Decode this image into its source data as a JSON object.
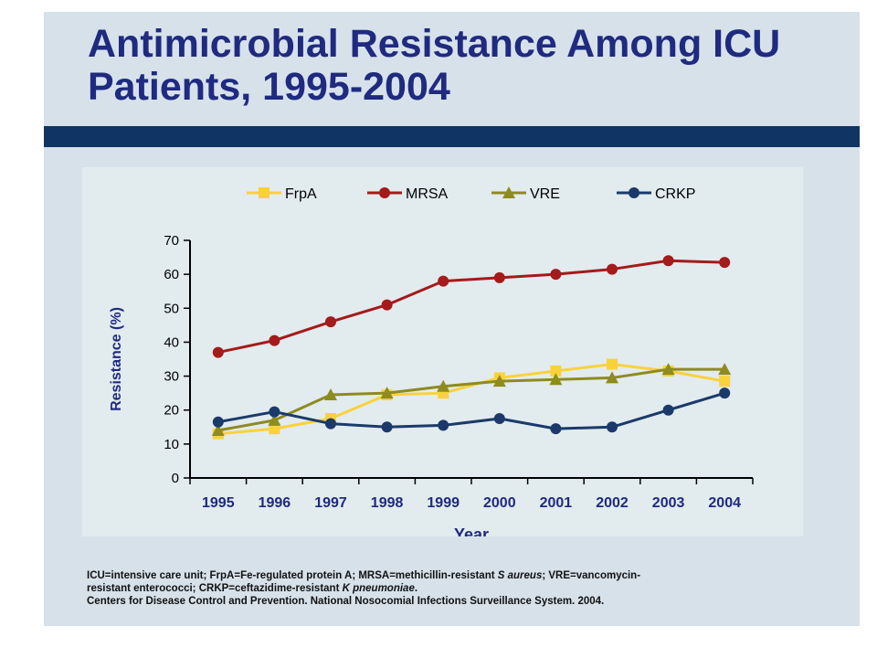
{
  "title": "Antimicrobial Resistance Among ICU Patients, 1995-2004",
  "colors": {
    "slide_bg": "#d6e1ea",
    "title_text": "#1f2a80",
    "title_bar": "#103463",
    "chart_panel": "#e2ebee",
    "axis_text": "#1f2a80"
  },
  "chart_data": {
    "type": "line",
    "x": [
      "1995",
      "1996",
      "1997",
      "1998",
      "1999",
      "2000",
      "2001",
      "2002",
      "2003",
      "2004"
    ],
    "xlabel": "Year",
    "ylabel": "Resistance (%)",
    "ylim": [
      0,
      70
    ],
    "yticks": [
      0,
      10,
      20,
      30,
      40,
      50,
      60,
      70
    ],
    "grid": false,
    "legend_position": "top",
    "series": [
      {
        "name": "FrpA",
        "marker": "square",
        "color": "#f9d23a",
        "values": [
          13,
          14.5,
          17.5,
          24.5,
          25,
          29.5,
          31.5,
          33.5,
          31.5,
          28.5
        ]
      },
      {
        "name": "MRSA",
        "marker": "circle",
        "color": "#a51a1a",
        "values": [
          37,
          40.5,
          46,
          51,
          58,
          59,
          60,
          61.5,
          64,
          63.5
        ]
      },
      {
        "name": "VRE",
        "marker": "triangle",
        "color": "#8e8b20",
        "values": [
          14,
          17,
          24.5,
          25,
          27,
          28.5,
          29,
          29.5,
          32,
          32
        ]
      },
      {
        "name": "CRKP",
        "marker": "circle",
        "color": "#1b3a6b",
        "values": [
          16.5,
          19.5,
          16,
          15,
          15.5,
          17.5,
          14.5,
          15,
          20,
          25
        ]
      }
    ]
  },
  "footnote": {
    "line1_a": "ICU=intensive care unit; FrpA=Fe-regulated protein A; MRSA=methicillin-resistant ",
    "line1_b": "S aureus",
    "line1_c": "; VRE=vancomycin-",
    "line2_a": "resistant enterococci; CRKP=ceftazidime-resistant ",
    "line2_b": "K pneumoniae",
    "line2_c": ".",
    "line3": "Centers for Disease Control and Prevention. National Nosocomial Infections Surveillance System. 2004."
  }
}
